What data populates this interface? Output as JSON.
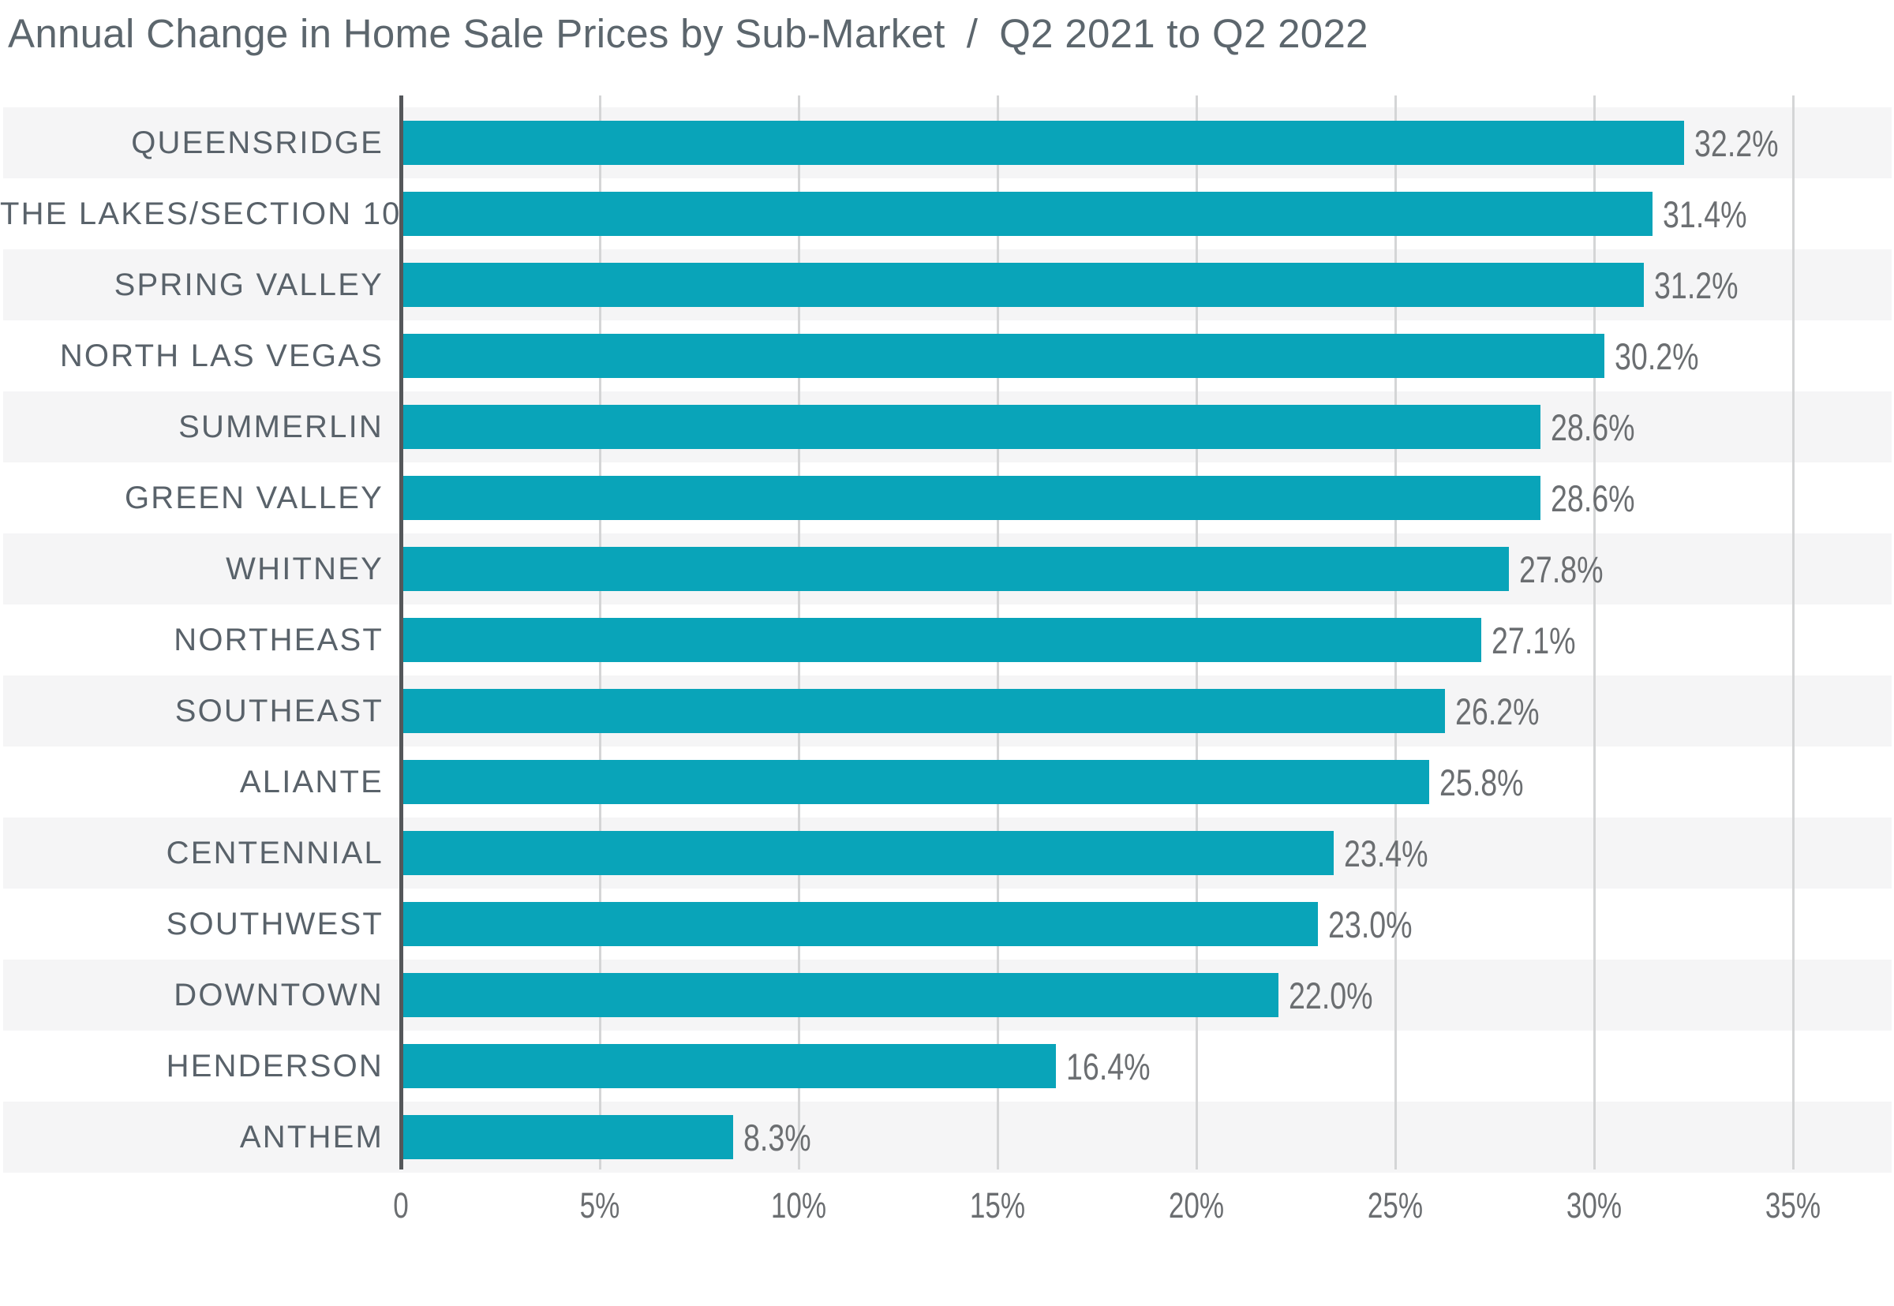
{
  "title": {
    "main": "Annual Change in Home Sale Prices by Sub-Market",
    "separator": "/",
    "period": "Q2 2021 to Q2 2022"
  },
  "chart_data": {
    "type": "bar",
    "orientation": "horizontal",
    "title": "Annual Change in Home Sale Prices by Sub-Market / Q2 2021 to Q2 2022",
    "categories": [
      "QUEENSRIDGE",
      "THE LAKES/SECTION 10",
      "SPRING VALLEY",
      "NORTH LAS VEGAS",
      "SUMMERLIN",
      "GREEN VALLEY",
      "WHITNEY",
      "NORTHEAST",
      "SOUTHEAST",
      "ALIANTE",
      "CENTENNIAL",
      "SOUTHWEST",
      "DOWNTOWN",
      "HENDERSON",
      "ANTHEM"
    ],
    "values": [
      32.2,
      31.4,
      31.2,
      30.2,
      28.6,
      28.6,
      27.8,
      27.1,
      26.2,
      25.8,
      23.4,
      23.0,
      22.0,
      16.4,
      8.3
    ],
    "value_labels": [
      "32.2%",
      "31.4%",
      "31.2%",
      "30.2%",
      "28.6%",
      "28.6%",
      "27.8%",
      "27.1%",
      "26.2%",
      "25.8%",
      "23.4%",
      "23.0%",
      "22.0%",
      "16.4%",
      "8.3%"
    ],
    "xlabel": "",
    "ylabel": "",
    "xlim": [
      0,
      35
    ],
    "x_ticks": [
      0,
      5,
      10,
      15,
      20,
      25,
      30,
      35
    ],
    "x_tick_labels": [
      "0",
      "5%",
      "10%",
      "15%",
      "20%",
      "25%",
      "30%",
      "35%"
    ],
    "grid": true,
    "legend": false,
    "row_banding": "alternating, first row shaded",
    "colors": {
      "bar": "#09a4b9",
      "band": "#f5f5f6",
      "grid": "#d4d5d6",
      "axis": "#54575a",
      "title": "#5c666d",
      "category": "#59626a",
      "value": "#6b6e71"
    }
  }
}
